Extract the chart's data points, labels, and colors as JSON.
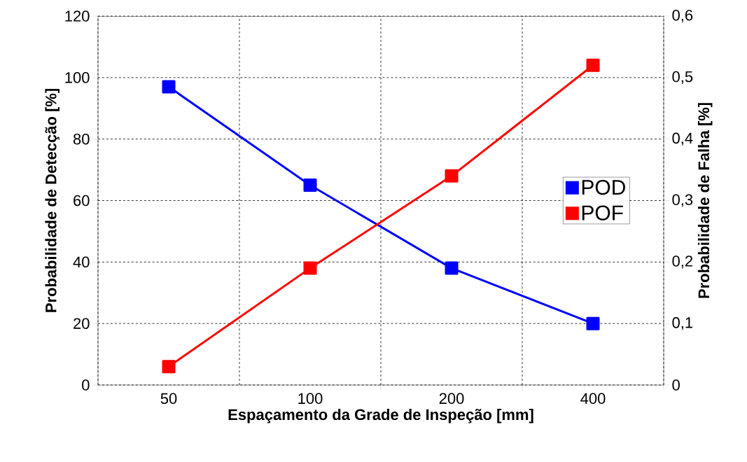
{
  "chart_data": {
    "type": "line",
    "xlabel": "Espaçamento da Grade de Inspeção [mm]",
    "ylabel": "Probabilidade de Detecção [%]",
    "y2label": "Probabilidade de Falha [%]",
    "categories": [
      "50",
      "100",
      "200",
      "400"
    ],
    "series": [
      {
        "name": "POD",
        "color": "#0000ff",
        "values": [
          97,
          65,
          38,
          20
        ]
      },
      {
        "name": "POF",
        "color": "#ff0000",
        "values": [
          0.03,
          0.19,
          0.34,
          0.52
        ],
        "axis": "y2"
      }
    ],
    "ylim": [
      0,
      120
    ],
    "yticks": [
      0,
      20,
      40,
      60,
      80,
      100,
      120
    ],
    "y2lim": [
      0,
      0.6
    ],
    "y2ticks": [
      0,
      {
        "value": 0.1,
        "label": "0,1"
      },
      {
        "value": 0.2,
        "label": "0,2"
      },
      {
        "value": 0.3,
        "label": "0,3"
      },
      {
        "value": 0.4,
        "label": "0,4"
      },
      {
        "value": 0.5,
        "label": "0,5"
      },
      {
        "value": 0.6,
        "label": "0,6"
      }
    ],
    "grid": true,
    "legend": "right",
    "marker": "square",
    "line_style": "solid"
  }
}
